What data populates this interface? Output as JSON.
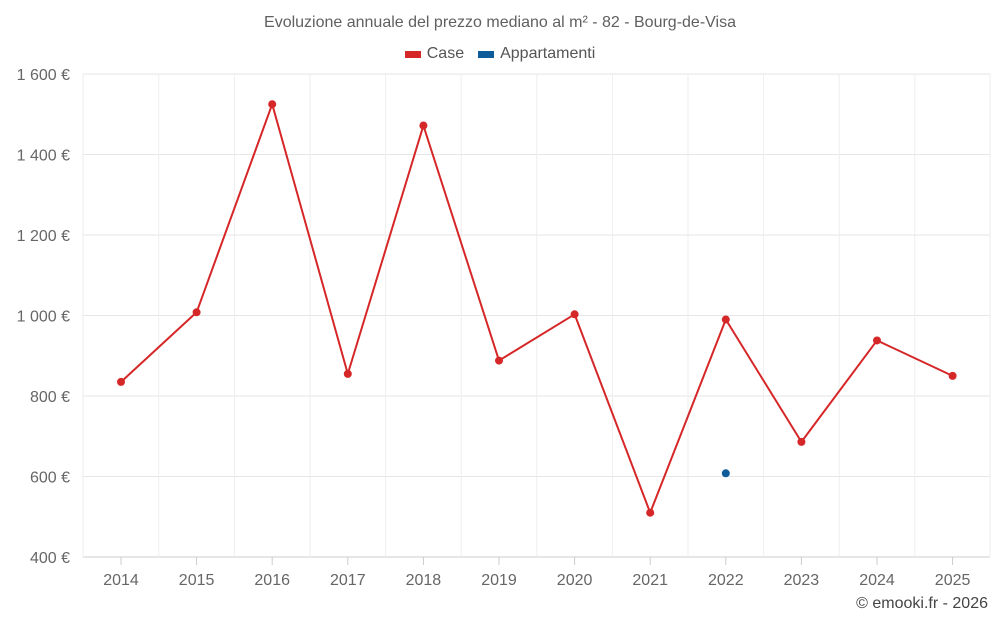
{
  "chart_data": {
    "type": "line",
    "title": "Evoluzione annuale del prezzo mediano al m² - 82 - Bourg-de-Visa",
    "xlabel": "",
    "ylabel": "",
    "x": [
      "2014",
      "2015",
      "2016",
      "2017",
      "2018",
      "2019",
      "2020",
      "2021",
      "2022",
      "2023",
      "2024",
      "2025"
    ],
    "ylim": [
      400,
      1600
    ],
    "yticks": [
      400,
      600,
      800,
      1000,
      1200,
      1400,
      1600
    ],
    "ytick_labels": [
      "400 €",
      "600 €",
      "800 €",
      "1 000 €",
      "1 200 €",
      "1 400 €",
      "1 600 €"
    ],
    "grid": true,
    "legend_position": "top-center",
    "series": [
      {
        "name": "Case",
        "color": "#d62728",
        "values": [
          835,
          1008,
          1525,
          855,
          1472,
          888,
          1003,
          510,
          990,
          686,
          938,
          850
        ]
      },
      {
        "name": "Appartamenti",
        "color": "#0f5c9a",
        "values": [
          null,
          null,
          null,
          null,
          null,
          null,
          null,
          null,
          608,
          null,
          null,
          null
        ]
      }
    ]
  },
  "credit": "© emooki.fr - 2026"
}
